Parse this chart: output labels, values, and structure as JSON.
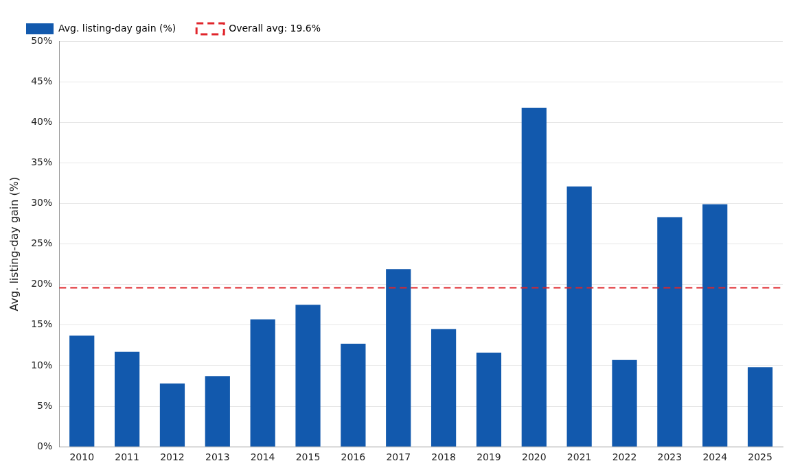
{
  "chart_data": {
    "type": "bar",
    "ylabel": "Avg. listing-day gain (%)",
    "categories": [
      "2010",
      "2011",
      "2012",
      "2013",
      "2014",
      "2015",
      "2016",
      "2017",
      "2018",
      "2019",
      "2020",
      "2021",
      "2022",
      "2023",
      "2024",
      "2025"
    ],
    "series": [
      {
        "name": "Avg. listing-day gain (%)",
        "color": "#1259ad",
        "values": [
          13.7,
          11.7,
          7.8,
          8.7,
          15.7,
          17.5,
          12.7,
          21.9,
          14.5,
          11.6,
          41.8,
          32.1,
          10.7,
          28.3,
          29.9,
          9.8
        ]
      }
    ],
    "ylim": [
      0,
      50
    ],
    "yticks": [
      {
        "value": 0,
        "label": "0%"
      },
      {
        "value": 5,
        "label": "5%"
      },
      {
        "value": 10,
        "label": "10%"
      },
      {
        "value": 15,
        "label": "15%"
      },
      {
        "value": 20,
        "label": "20%"
      },
      {
        "value": 25,
        "label": "25%"
      },
      {
        "value": 30,
        "label": "30%"
      },
      {
        "value": 35,
        "label": "35%"
      },
      {
        "value": 40,
        "label": "40%"
      },
      {
        "value": 45,
        "label": "45%"
      },
      {
        "value": 50,
        "label": "50%"
      }
    ],
    "ref_lines": [
      {
        "axis": "y",
        "value": 19.6,
        "label": "Overall avg: 19.6%",
        "color": "#e0252b",
        "line_style": "dashed"
      }
    ],
    "grid": "y",
    "legend": "top left"
  }
}
